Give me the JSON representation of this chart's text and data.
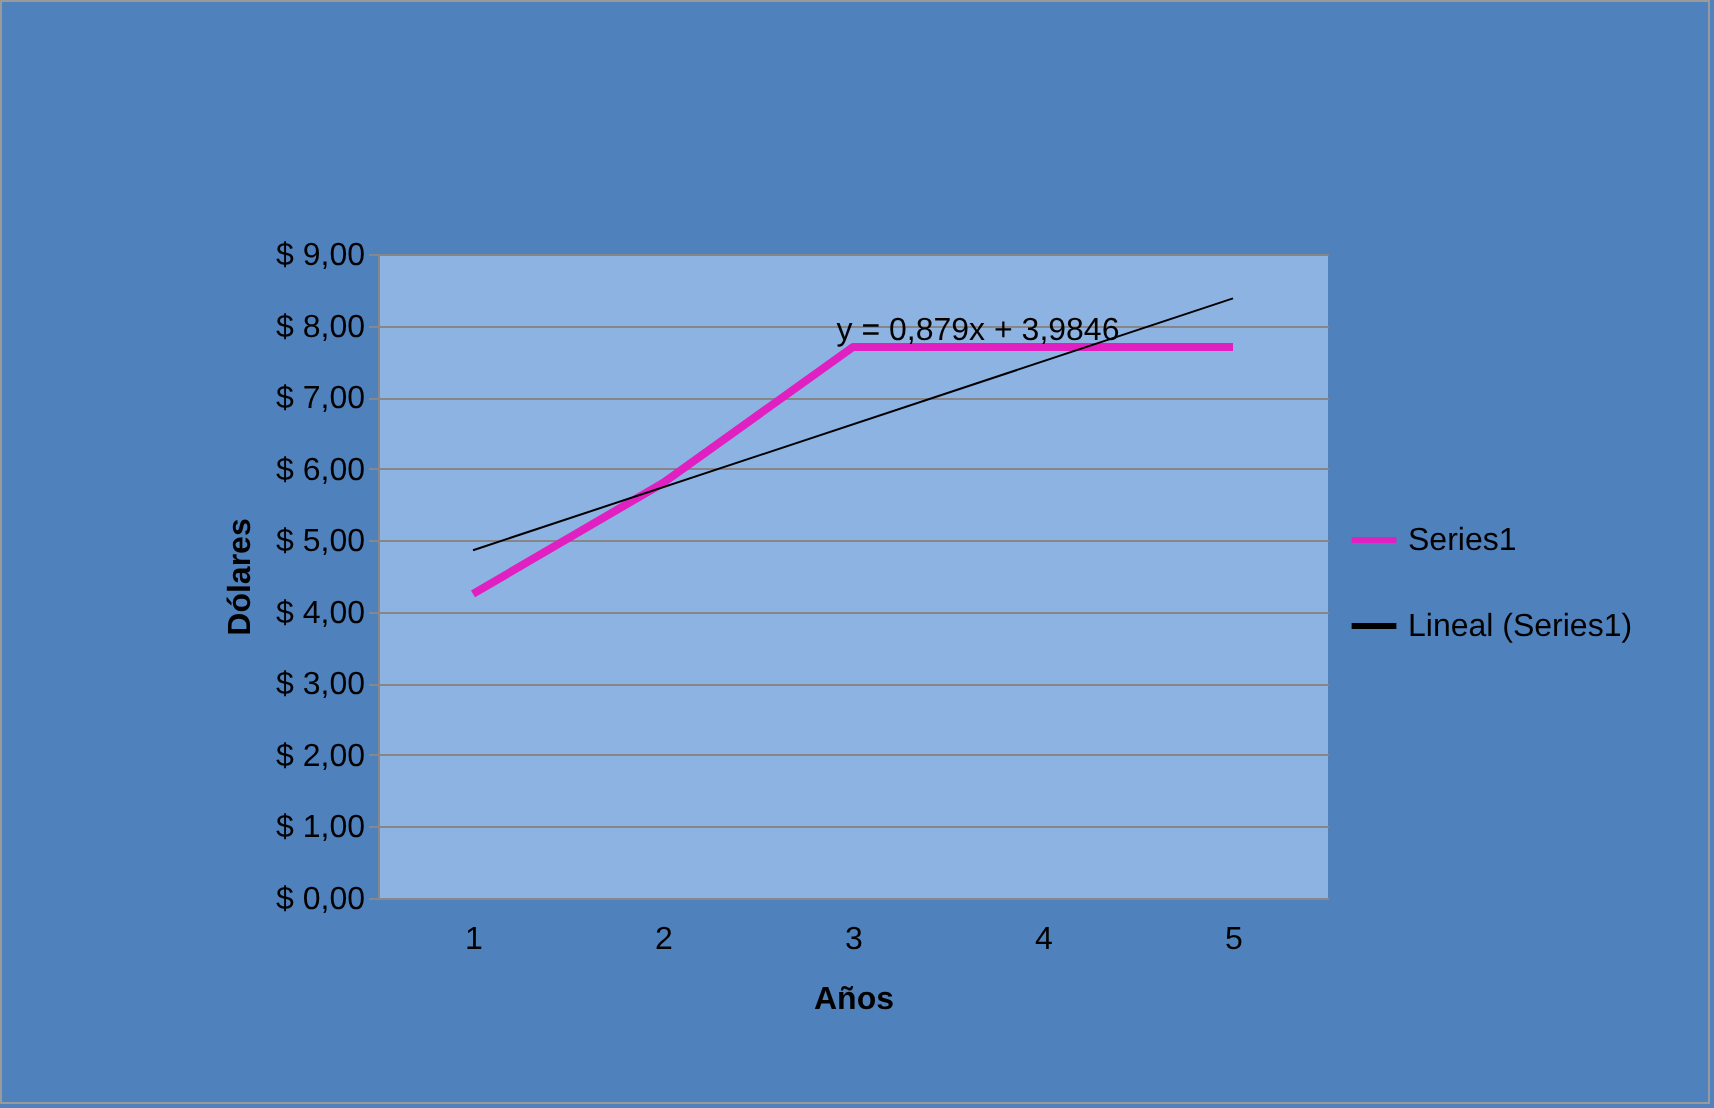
{
  "chart_data": {
    "type": "line",
    "xlabel": "Años",
    "ylabel": "Dólares",
    "x": [
      1,
      2,
      3,
      4,
      5
    ],
    "xlim": [
      0.5,
      5.5
    ],
    "xticks": [
      1,
      2,
      3,
      4,
      5
    ],
    "ylim": [
      0,
      9
    ],
    "yticks": [
      {
        "value": 0,
        "label": "$ 0,00"
      },
      {
        "value": 1,
        "label": "$ 1,00"
      },
      {
        "value": 2,
        "label": "$ 2,00"
      },
      {
        "value": 3,
        "label": "$ 3,00"
      },
      {
        "value": 4,
        "label": "$ 4,00"
      },
      {
        "value": 5,
        "label": "$ 5,00"
      },
      {
        "value": 6,
        "label": "$ 6,00"
      },
      {
        "value": 7,
        "label": "$ 7,00"
      },
      {
        "value": 8,
        "label": "$ 8,00"
      },
      {
        "value": 9,
        "label": "$ 9,00"
      }
    ],
    "series": [
      {
        "name": "Series1",
        "color": "#e020c0",
        "values": [
          4.25,
          5.8,
          7.7,
          7.7,
          7.7
        ]
      },
      {
        "name": "Lineal (Series1)",
        "color": "#000000",
        "type": "line",
        "x": [
          1,
          5
        ],
        "values": [
          4.86,
          8.38
        ]
      }
    ],
    "annotations": [
      "y = 0,879x + 3,9846"
    ],
    "grid": "y",
    "legend": "right"
  }
}
